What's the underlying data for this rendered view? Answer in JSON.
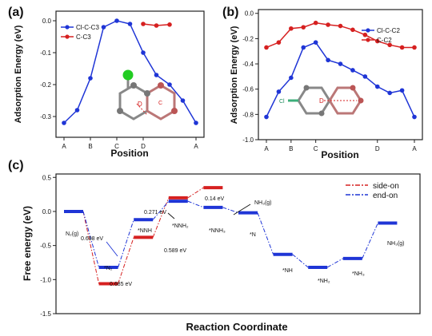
{
  "colors": {
    "blue": "#1f35d6",
    "red": "#d62020",
    "axis": "#222222"
  },
  "chart_data": [
    {
      "panel": "(a)",
      "type": "line",
      "ylabel": "Adsorption Energy (eV)",
      "xlabel": "Position",
      "tick_labels": [
        "A",
        "B",
        "C",
        "D",
        "A"
      ],
      "y_ticks": [
        "0.0",
        "-0.1",
        "-0.2",
        "-0.3"
      ],
      "ylim": [
        -0.365,
        0.03
      ],
      "x_count": 11,
      "legend": [
        "Cl-C-C3",
        "C-C3"
      ],
      "inset_labels": {
        "marker": "D",
        "corner_C": "C"
      },
      "series": [
        {
          "name": "Cl-C-C3",
          "color": "blue",
          "x": [
            0,
            1,
            2,
            3,
            4,
            5,
            6,
            7,
            8,
            9,
            10
          ],
          "y": [
            -0.32,
            -0.28,
            -0.18,
            -0.02,
            0.0,
            -0.01,
            -0.1,
            -0.17,
            -0.2,
            -0.25,
            -0.32
          ]
        },
        {
          "name": "C-C3",
          "color": "red",
          "x": [
            6,
            7,
            8
          ],
          "y": [
            -0.01,
            -0.015,
            -0.012
          ]
        }
      ]
    },
    {
      "panel": "(b)",
      "type": "line",
      "ylabel": "Adsorption Energy (eV)",
      "xlabel": "Position",
      "tick_labels": [
        "A",
        "B",
        "C",
        "D",
        "A"
      ],
      "y_ticks": [
        "0.0",
        "-0.2",
        "-0.4",
        "-0.6",
        "-0.8",
        "-1.0"
      ],
      "ylim": [
        -1.0,
        0.03
      ],
      "x_count": 13,
      "legend": [
        "Cl-C-C2",
        "C-C2"
      ],
      "inset_labels": {
        "cl": "Cl",
        "marker": "D"
      },
      "series": [
        {
          "name": "Cl-C-C2",
          "color": "blue",
          "x": [
            0,
            1,
            2,
            3,
            4,
            5,
            6,
            7,
            8,
            9,
            10,
            11,
            12
          ],
          "y": [
            -0.82,
            -0.62,
            -0.51,
            -0.27,
            -0.23,
            -0.37,
            -0.4,
            -0.45,
            -0.5,
            -0.58,
            -0.63,
            -0.61,
            -0.82
          ]
        },
        {
          "name": "C-C2",
          "color": "red",
          "x": [
            0,
            1,
            2,
            3,
            4,
            5,
            6,
            7,
            8,
            9,
            10,
            11,
            12
          ],
          "y": [
            -0.27,
            -0.23,
            -0.12,
            -0.11,
            -0.075,
            -0.09,
            -0.1,
            -0.13,
            -0.17,
            -0.22,
            -0.25,
            -0.27,
            -0.27
          ]
        }
      ]
    },
    {
      "panel": "(c)",
      "type": "line",
      "ylabel": "Free energy (eV)",
      "xlabel": "Reaction Coordinate",
      "y_ticks": [
        "0.5",
        "0.0",
        "-0.5",
        "-1.0",
        "-1.5"
      ],
      "ylim": [
        -1.5,
        0.55
      ],
      "legend": [
        "side-on",
        "end-on"
      ],
      "series": [
        {
          "name": "side-on",
          "color": "red",
          "levels": [
            0.0,
            -1.06,
            -0.38,
            0.2,
            0.35
          ]
        },
        {
          "name": "end-on",
          "color": "blue",
          "levels": [
            0.0,
            -0.82,
            -0.12,
            0.15,
            0.06,
            -0.02,
            -0.63,
            -0.82,
            -0.69,
            -0.17
          ]
        }
      ],
      "annotations": {
        "n2g": "N₂(g)",
        "n2": "*N₂",
        "nnh": "*NNH",
        "nnh2": "*NNH₂",
        "nnh3": "*NNH₃",
        "n": "*N",
        "nh": "*NH",
        "nh2": "*NH₂",
        "nh3": "*NH₃",
        "nh3g_end": "NH₃(g)",
        "nh3g_side": "NH₃(g)",
        "e1": "0.698 eV",
        "e2": "0.685 eV",
        "e3": "0.589 eV",
        "e4": "0.271 eV",
        "e5": "0.14 eV"
      }
    }
  ]
}
